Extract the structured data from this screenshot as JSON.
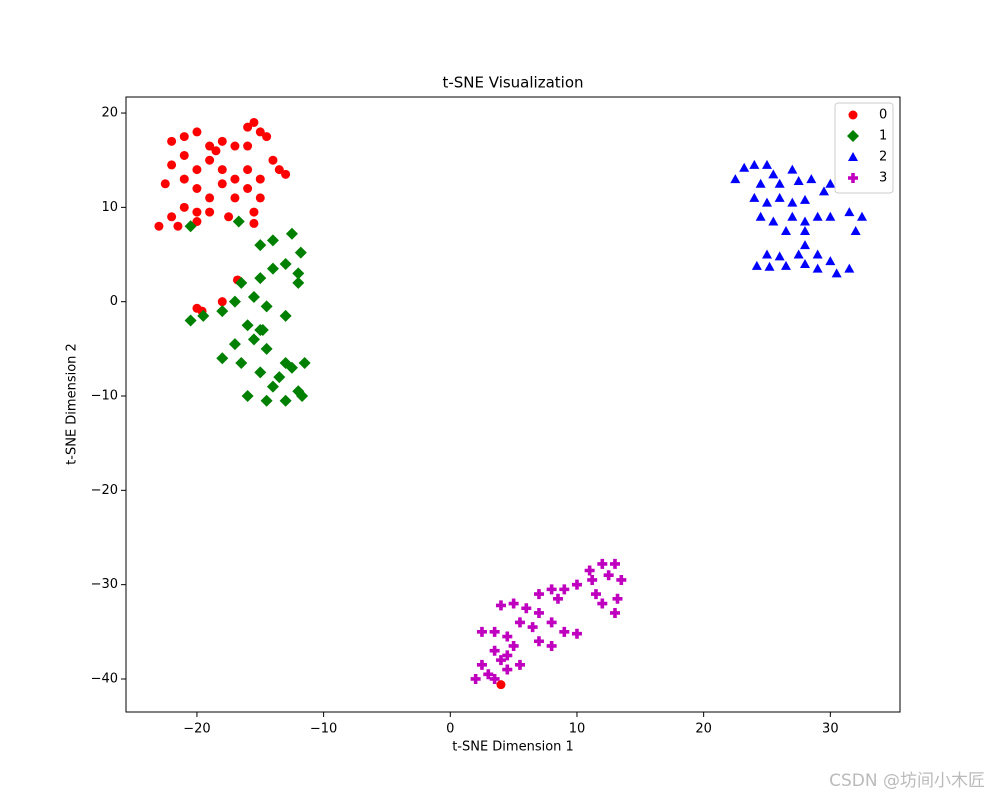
{
  "chart_data": {
    "type": "scatter",
    "title": "t-SNE Visualization",
    "x_label": "t-SNE Dimension 1",
    "y_label": "t-SNE Dimension 2",
    "xlim": [
      -25.6,
      35.5
    ],
    "ylim": [
      -43.5,
      21.7
    ],
    "xticks": [
      {
        "value": -20,
        "label": "−20"
      },
      {
        "value": -10,
        "label": "−10"
      },
      0,
      10,
      20,
      30
    ],
    "yticks": [
      {
        "value": -40,
        "label": "−40"
      },
      {
        "value": -30,
        "label": "−30"
      },
      {
        "value": -20,
        "label": "−20"
      },
      {
        "value": -10,
        "label": "−10"
      },
      0,
      10,
      20
    ],
    "legend": "upper right",
    "watermark": "CSDN @坊间小木匠",
    "series": [
      {
        "name": "0",
        "color": "#ff0000",
        "marker": "circle",
        "x": [
          -22,
          -21,
          -20,
          -19,
          -18,
          -17,
          -16,
          -15.5,
          -15,
          -14.5,
          -14,
          -13.5,
          -13,
          -15,
          -16,
          -17,
          -18,
          -19,
          -20,
          -21,
          -22,
          -22.5,
          -21,
          -20,
          -19,
          -18,
          -17,
          -16,
          -15,
          -20,
          -21,
          -22,
          -23,
          -21.5,
          -20,
          -19,
          -17.5,
          -15.5,
          -15.5,
          -16,
          -18.5,
          -16.8,
          -18,
          -20,
          -19.6,
          4
        ],
        "values": [
          17,
          17.5,
          18,
          16.5,
          17,
          16.5,
          18.5,
          19,
          18,
          17.5,
          15,
          14,
          13.5,
          13,
          14,
          13,
          14,
          15,
          14,
          15.5,
          14.5,
          12.5,
          13,
          12,
          11,
          12.5,
          11,
          12,
          11,
          9.5,
          10,
          9,
          8,
          8,
          8.5,
          9.5,
          9,
          9.5,
          8.3,
          16.5,
          16,
          2.3,
          0,
          -0.7,
          -1,
          -40.6
        ]
      },
      {
        "name": "1",
        "color": "#008000",
        "marker": "diamond",
        "x": [
          -20.5,
          -16.7,
          -12.5,
          -14,
          -15,
          -11.8,
          -13,
          -14,
          -12,
          -15,
          -16.5,
          -17,
          -15.5,
          -14.5,
          -18,
          -19.5,
          -20.5,
          -16,
          -15,
          -13,
          -17,
          -15.5,
          -14.5,
          -18,
          -16.5,
          -13,
          -11.5,
          -15,
          -13.5,
          -12,
          -14,
          -16,
          -14.5,
          -13,
          -11.7,
          -12,
          -12.5,
          -14.8
        ],
        "values": [
          8,
          8.5,
          7.2,
          6.5,
          6,
          5.2,
          4,
          3.5,
          3,
          2.5,
          2,
          0,
          0.5,
          -0.5,
          -1,
          -1.5,
          -2,
          -2.5,
          -3,
          -1.5,
          -4.5,
          -4,
          -5,
          -6,
          -6.5,
          -6.5,
          -6.5,
          -7.5,
          -8,
          -9.5,
          -9,
          -10,
          -10.5,
          -10.5,
          -10,
          2,
          -7,
          -3
        ]
      },
      {
        "name": "2",
        "color": "#0000ff",
        "marker": "triangle",
        "x": [
          22.5,
          23.2,
          24,
          25,
          25.5,
          24.5,
          26,
          27,
          27.5,
          28.5,
          30,
          31,
          29.5,
          24,
          25,
          26,
          27,
          28,
          24.5,
          25.5,
          27,
          28,
          29,
          30,
          31.5,
          32.5,
          32,
          26.5,
          28,
          28,
          25,
          26,
          27.5,
          29,
          24.2,
          25.2,
          26.5,
          28,
          29,
          30.5,
          31.5,
          30
        ],
        "values": [
          13,
          14.2,
          14.5,
          14.5,
          13.5,
          12.5,
          12.5,
          14,
          12.8,
          13,
          12.5,
          13,
          11.7,
          11,
          10.5,
          11,
          10.5,
          10.8,
          9,
          8.5,
          9,
          8.5,
          9,
          9,
          9.5,
          9,
          7.5,
          7.5,
          7.5,
          6,
          5,
          4.8,
          5,
          5,
          3.8,
          3.7,
          3.8,
          4,
          3.5,
          3,
          3.5,
          4.3
        ]
      },
      {
        "name": "3",
        "color": "#bf00bf",
        "marker": "plus",
        "x": [
          12,
          13,
          11,
          12.5,
          13.5,
          11.2,
          10,
          9,
          8,
          7,
          8.5,
          11.5,
          13.2,
          12,
          13,
          5,
          4,
          6,
          7,
          5.5,
          6.5,
          8,
          9,
          10,
          7,
          8,
          2.5,
          3.5,
          4.5,
          3.5,
          4.5,
          2.5,
          3,
          2,
          3.5,
          4.5,
          5.5,
          5,
          4
        ],
        "values": [
          -27.8,
          -27.8,
          -28.5,
          -29,
          -29.5,
          -29.5,
          -30,
          -30.5,
          -30.5,
          -31,
          -31.5,
          -31,
          -31.5,
          -32,
          -33,
          -32,
          -32.2,
          -32.5,
          -33,
          -34,
          -34.5,
          -34,
          -35,
          -35.2,
          -36,
          -36.5,
          -35,
          -35,
          -35.5,
          -37,
          -37.5,
          -38.5,
          -39.5,
          -40,
          -40,
          -39,
          -38.5,
          -36.5,
          -38
        ]
      }
    ]
  }
}
